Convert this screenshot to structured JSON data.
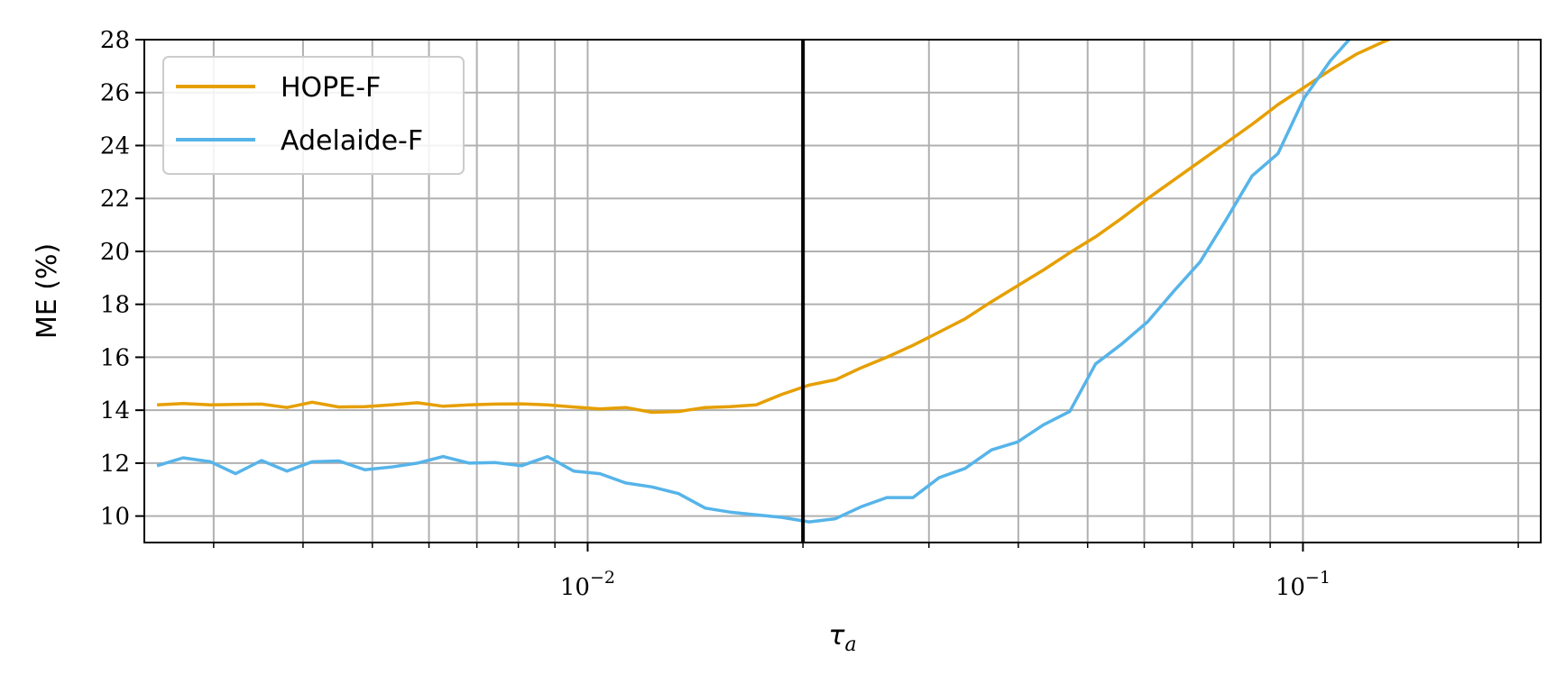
{
  "chart_data": {
    "type": "line",
    "xscale": "log",
    "xlim": [
      0.0024,
      0.215
    ],
    "ylim": [
      9,
      28
    ],
    "xlabel": "τa",
    "ylabel": "ME (%)",
    "grid": true,
    "legend_position": "top-left",
    "vline_x": 0.02,
    "yticks": [
      "10",
      "12",
      "14",
      "16",
      "18",
      "20",
      "22",
      "24",
      "26",
      "28"
    ],
    "xtick_labels": [
      {
        "value": 0.01,
        "base": "10",
        "exp": "−2"
      },
      {
        "value": 0.1,
        "base": "10",
        "exp": "−1"
      }
    ],
    "series": [
      {
        "name": "HOPE-F",
        "color": "#E69F00",
        "points": [
          [
            0.0025,
            14.2
          ],
          [
            0.00272,
            14.25
          ],
          [
            0.00297,
            14.2
          ],
          [
            0.00322,
            14.22
          ],
          [
            0.0035,
            14.23
          ],
          [
            0.0038,
            14.1
          ],
          [
            0.00412,
            14.3
          ],
          [
            0.00449,
            14.12
          ],
          [
            0.00488,
            14.13
          ],
          [
            0.00531,
            14.2
          ],
          [
            0.00578,
            14.28
          ],
          [
            0.00628,
            14.15
          ],
          [
            0.00683,
            14.2
          ],
          [
            0.00743,
            14.23
          ],
          [
            0.00808,
            14.24
          ],
          [
            0.00879,
            14.2
          ],
          [
            0.00956,
            14.12
          ],
          [
            0.0104,
            14.05
          ],
          [
            0.0113,
            14.1
          ],
          [
            0.0123,
            13.92
          ],
          [
            0.0134,
            13.95
          ],
          [
            0.0146,
            14.1
          ],
          [
            0.0158,
            14.13
          ],
          [
            0.0172,
            14.2
          ],
          [
            0.0187,
            14.6
          ],
          [
            0.0204,
            14.95
          ],
          [
            0.0222,
            15.15
          ],
          [
            0.0241,
            15.6
          ],
          [
            0.0262,
            16.0
          ],
          [
            0.0285,
            16.45
          ],
          [
            0.031,
            16.95
          ],
          [
            0.0337,
            17.45
          ],
          [
            0.0367,
            18.1
          ],
          [
            0.0399,
            18.7
          ],
          [
            0.0434,
            19.3
          ],
          [
            0.0472,
            19.95
          ],
          [
            0.0513,
            20.55
          ],
          [
            0.0558,
            21.25
          ],
          [
            0.0607,
            22.0
          ],
          [
            0.066,
            22.7
          ],
          [
            0.0718,
            23.4
          ],
          [
            0.0781,
            24.1
          ],
          [
            0.0849,
            24.8
          ],
          [
            0.0923,
            25.55
          ],
          [
            0.1004,
            26.2
          ],
          [
            0.1092,
            26.85
          ],
          [
            0.1187,
            27.45
          ],
          [
            0.1291,
            27.9
          ],
          [
            0.1404,
            28.3
          ]
        ]
      },
      {
        "name": "Adelaide-F",
        "color": "#56B4E9",
        "points": [
          [
            0.0025,
            11.9
          ],
          [
            0.00272,
            12.2
          ],
          [
            0.00297,
            12.05
          ],
          [
            0.00322,
            11.6
          ],
          [
            0.0035,
            12.1
          ],
          [
            0.0038,
            11.7
          ],
          [
            0.00412,
            12.05
          ],
          [
            0.00449,
            12.08
          ],
          [
            0.00488,
            11.75
          ],
          [
            0.00531,
            11.85
          ],
          [
            0.00578,
            12.0
          ],
          [
            0.00628,
            12.25
          ],
          [
            0.00683,
            12.0
          ],
          [
            0.00743,
            12.02
          ],
          [
            0.00808,
            11.9
          ],
          [
            0.00879,
            12.25
          ],
          [
            0.00956,
            11.7
          ],
          [
            0.0104,
            11.6
          ],
          [
            0.0113,
            11.25
          ],
          [
            0.0123,
            11.1
          ],
          [
            0.0134,
            10.85
          ],
          [
            0.0146,
            10.3
          ],
          [
            0.0158,
            10.15
          ],
          [
            0.0172,
            10.05
          ],
          [
            0.0187,
            9.95
          ],
          [
            0.0204,
            9.78
          ],
          [
            0.0222,
            9.9
          ],
          [
            0.0241,
            10.35
          ],
          [
            0.0262,
            10.7
          ],
          [
            0.0285,
            10.7
          ],
          [
            0.031,
            11.45
          ],
          [
            0.0337,
            11.8
          ],
          [
            0.0367,
            12.5
          ],
          [
            0.0399,
            12.8
          ],
          [
            0.0434,
            13.45
          ],
          [
            0.0472,
            13.95
          ],
          [
            0.0513,
            15.75
          ],
          [
            0.0558,
            16.5
          ],
          [
            0.0607,
            17.35
          ],
          [
            0.066,
            18.5
          ],
          [
            0.0718,
            19.6
          ],
          [
            0.0781,
            21.2
          ],
          [
            0.0849,
            22.85
          ],
          [
            0.0923,
            23.7
          ],
          [
            0.1004,
            25.8
          ],
          [
            0.1092,
            27.2
          ],
          [
            0.1187,
            28.3
          ]
        ]
      }
    ]
  }
}
